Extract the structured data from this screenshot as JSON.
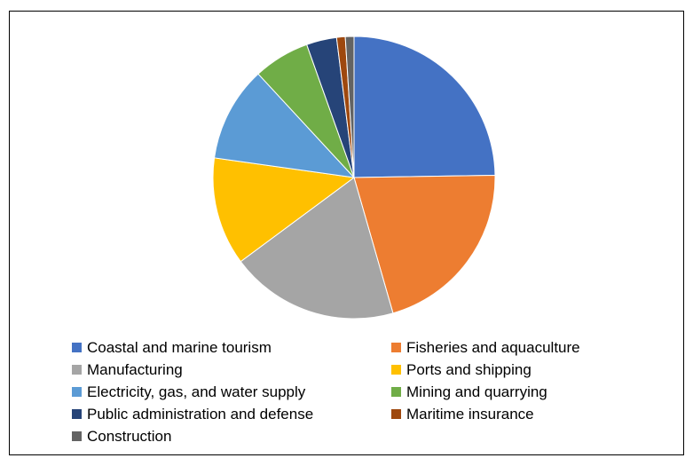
{
  "chart_data": {
    "type": "pie",
    "title": "",
    "series": [
      {
        "values": [
          25,
          21,
          19.5,
          12.5,
          11,
          6.5,
          3.5,
          1,
          1
        ],
        "labels": [
          "Coastal and marine tourism",
          "Fisheries and aquaculture",
          "Manufacturing",
          "Ports and shipping",
          "Electricity, gas, and water supply",
          "Mining and quarrying",
          "Public administration and defense",
          "Maritime insurance",
          "Construction"
        ],
        "colors": [
          "#4472c4",
          "#ed7d31",
          "#a5a5a5",
          "#ffc000",
          "#5b9bd5",
          "#70ad47",
          "#264478",
          "#9e480e",
          "#636363"
        ]
      }
    ],
    "legend_position": "bottom",
    "start_angle_deg": 0,
    "direction": "clockwise",
    "slice_border_color": "#ffffff"
  }
}
